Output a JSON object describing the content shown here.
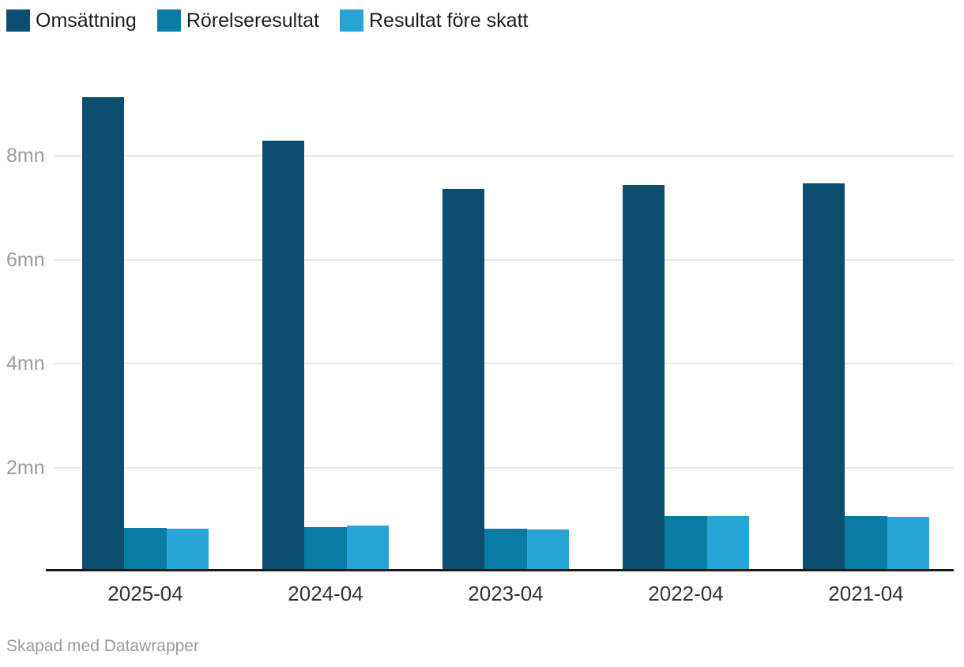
{
  "chart_data": {
    "type": "bar",
    "title": "",
    "xlabel": "",
    "ylabel": "",
    "unit": "mn",
    "categories": [
      "2025-04",
      "2024-04",
      "2023-04",
      "2022-04",
      "2021-04"
    ],
    "series": [
      {
        "name": "Omsättning",
        "color": "#0b4e70",
        "values": [
          9.14,
          8.3,
          7.37,
          7.44,
          7.48
        ]
      },
      {
        "name": "Rörelseresultat",
        "color": "#0a7ba5",
        "values": [
          0.84,
          0.85,
          0.82,
          1.07,
          1.06
        ]
      },
      {
        "name": "Resultat före skatt",
        "color": "#29a4d7",
        "values": [
          0.82,
          0.89,
          0.81,
          1.06,
          1.05
        ]
      }
    ],
    "y_ticks": [
      {
        "value": 2,
        "label": "2mn"
      },
      {
        "value": 4,
        "label": "4mn"
      },
      {
        "value": 6,
        "label": "6mn"
      },
      {
        "value": 8,
        "label": "8mn"
      }
    ],
    "ylim": [
      0,
      9.6
    ],
    "grid": true,
    "legend_position": "top-left"
  },
  "footer": {
    "credit": "Skapad med Datawrapper"
  },
  "colors": {
    "background": "#ffffff",
    "grid": "#e7e7e7",
    "axis": "#191919",
    "tick_label": "#9c9c9c",
    "category_label": "#333333",
    "legend_text": "#1d1d1d",
    "footer_text": "#9b9b9b"
  }
}
